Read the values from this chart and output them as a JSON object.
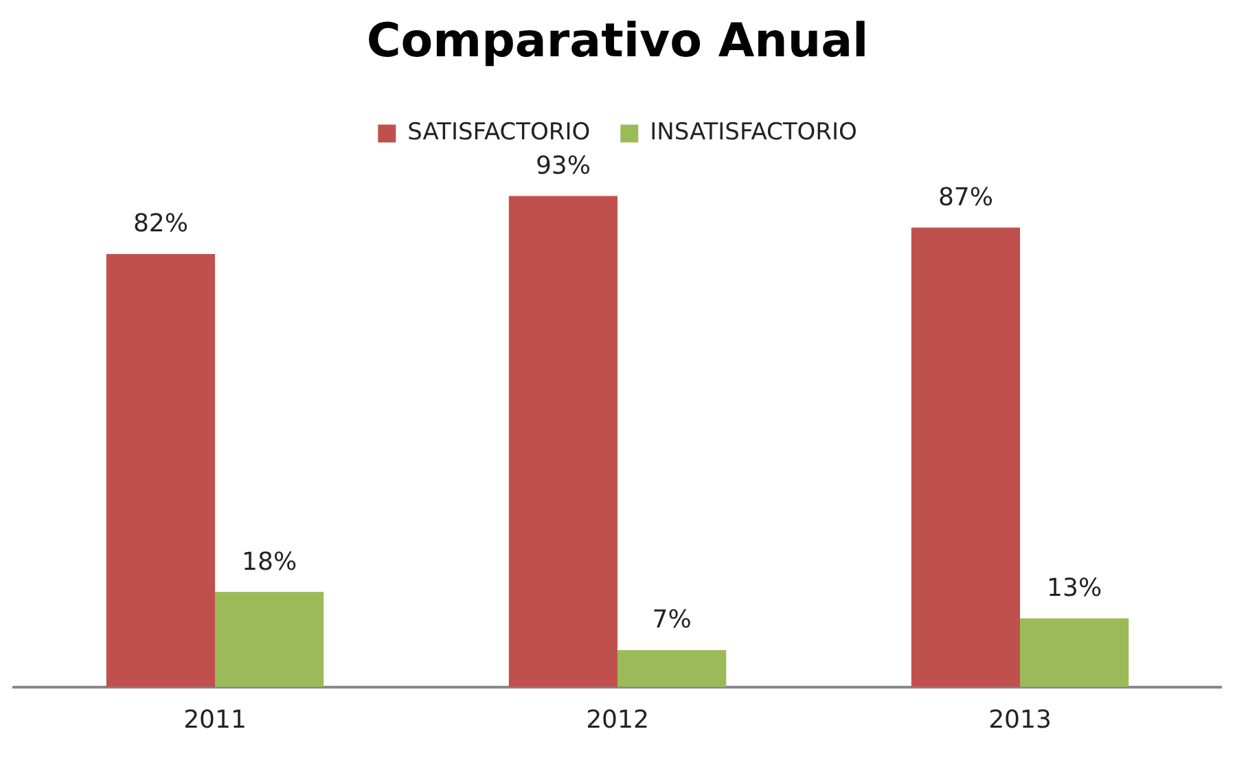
{
  "chart_data": {
    "type": "bar",
    "title": "Comparativo Anual",
    "categories": [
      "2011",
      "2012",
      "2013"
    ],
    "series": [
      {
        "name": "SATISFACTORIO",
        "color": "#c0504d",
        "values": [
          82,
          93,
          87
        ],
        "value_labels": [
          "82%",
          "93%",
          "87%"
        ]
      },
      {
        "name": "INSATISFACTORIO",
        "color": "#9bbb59",
        "values": [
          18,
          7,
          13
        ],
        "value_labels": [
          "18%",
          "7%",
          "13%"
        ]
      }
    ],
    "legend": "top",
    "grid": false
  }
}
